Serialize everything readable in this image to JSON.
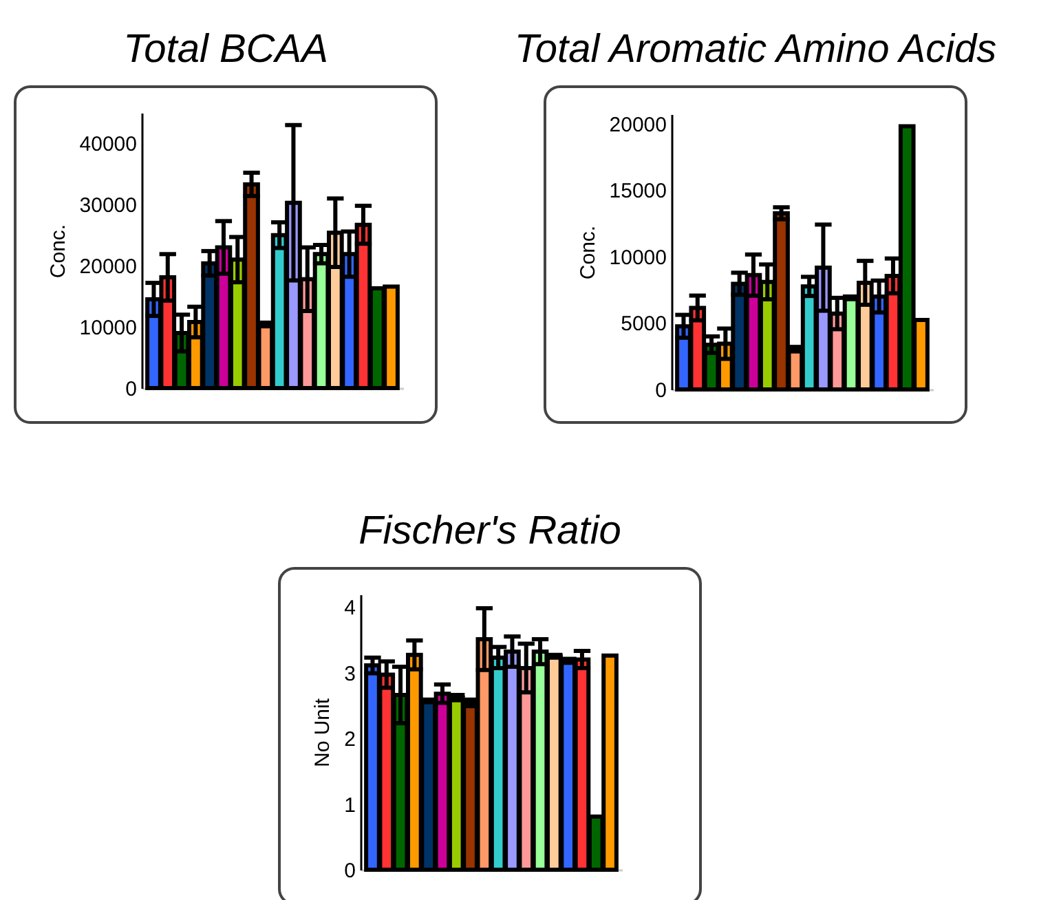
{
  "chart_data": [
    {
      "type": "bar",
      "title": "Total BCAA",
      "ylabel": "Conc.",
      "tick_labels": "y",
      "grid": false,
      "categories": [
        null,
        null,
        null,
        null,
        null,
        null,
        null,
        null,
        null,
        null,
        null,
        null,
        null,
        null,
        null,
        null,
        null,
        null
      ],
      "values": [
        14500,
        18100,
        9000,
        10800,
        20400,
        23000,
        21000,
        33300,
        10400,
        25000,
        30300,
        17800,
        21900,
        25400,
        21900,
        26700,
        16300,
        16600
      ],
      "errors": [
        2700,
        3800,
        3000,
        2500,
        2000,
        4300,
        3700,
        1900,
        300,
        2100,
        12700,
        5200,
        1500,
        5600,
        3700,
        3100,
        null,
        null
      ],
      "colors": [
        "#3366ff",
        "#ff3333",
        "#006600",
        "#ff9900",
        "#003366",
        "#cc0099",
        "#99cc00",
        "#993300",
        "#ff9966",
        "#33cccc",
        "#9999ff",
        "#ff9999",
        "#99ff99",
        "#ffcc99",
        "#3366ff",
        "#ff3333",
        "#006600",
        "#ff9900"
      ],
      "ylim": [
        0,
        45000
      ],
      "yticks": [
        0,
        10000,
        20000,
        30000,
        40000
      ]
    },
    {
      "type": "bar",
      "title": "Total Aromatic Amino Acids",
      "ylabel": "Conc.",
      "tick_labels": "y",
      "grid": false,
      "categories": [
        null,
        null,
        null,
        null,
        null,
        null,
        null,
        null,
        null,
        null,
        null,
        null,
        null,
        null,
        null,
        null,
        null,
        null
      ],
      "values": [
        4750,
        6130,
        3370,
        3440,
        7950,
        8600,
        8090,
        13250,
        3030,
        7750,
        9160,
        5710,
        6890,
        8020,
        6990,
        8540,
        19800,
        5230
      ],
      "errors": [
        860,
        930,
        620,
        1140,
        830,
        1550,
        1310,
        450,
        170,
        720,
        3240,
        1180,
        100,
        1650,
        1200,
        1310,
        null,
        null
      ],
      "colors": [
        "#3366ff",
        "#ff3333",
        "#006600",
        "#ff9900",
        "#003366",
        "#cc0099",
        "#99cc00",
        "#993300",
        "#ff9966",
        "#33cccc",
        "#9999ff",
        "#ff9999",
        "#99ff99",
        "#ffcc99",
        "#3366ff",
        "#ff3333",
        "#006600",
        "#ff9900"
      ],
      "ylim": [
        0,
        20700
      ],
      "yticks": [
        0,
        5000,
        10000,
        15000,
        20000
      ]
    },
    {
      "type": "bar",
      "title": "Fischer's Ratio",
      "ylabel": "No Unit",
      "tick_labels": "y",
      "grid": false,
      "categories": [
        null,
        null,
        null,
        null,
        null,
        null,
        null,
        null,
        null,
        null,
        null,
        null,
        null,
        null,
        null,
        null,
        null,
        null
      ],
      "values": [
        3.11,
        2.97,
        2.66,
        3.27,
        2.57,
        2.68,
        2.62,
        2.54,
        3.51,
        3.23,
        3.32,
        3.07,
        3.32,
        3.25,
        3.18,
        3.2,
        0.81,
        3.26
      ],
      "errors": [
        0.12,
        0.2,
        0.43,
        0.22,
        0.02,
        0.14,
        0.04,
        0.05,
        0.47,
        0.16,
        0.23,
        0.37,
        0.19,
        0.02,
        0.03,
        0.13,
        null,
        null
      ],
      "colors": [
        "#3366ff",
        "#ff3333",
        "#006600",
        "#ff9900",
        "#003366",
        "#cc0099",
        "#99cc00",
        "#993300",
        "#ff9966",
        "#33cccc",
        "#9999ff",
        "#ff9999",
        "#99ff99",
        "#ffcc99",
        "#3366ff",
        "#ff3333",
        "#006600",
        "#ff9900"
      ],
      "ylim": [
        0,
        4.19
      ],
      "yticks": [
        0,
        1,
        2,
        3,
        4
      ]
    }
  ]
}
